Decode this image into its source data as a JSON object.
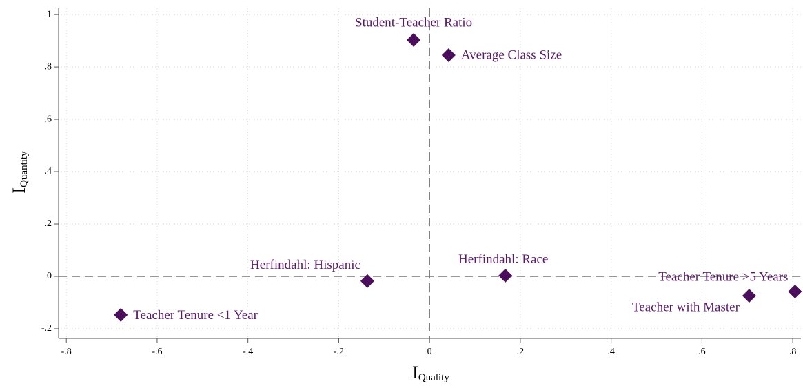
{
  "chart_data": {
    "type": "scatter",
    "xlabel": "I",
    "xlabel_sub": "Quality",
    "ylabel": "I",
    "ylabel_sub": "Quantity",
    "xlim": [
      -0.817,
      0.818
    ],
    "ylim": [
      -0.237,
      1.024
    ],
    "xticks": [
      {
        "value": -0.8,
        "label": "-.8"
      },
      {
        "value": -0.6,
        "label": "-.6"
      },
      {
        "value": -0.4,
        "label": "-.4"
      },
      {
        "value": -0.2,
        "label": "-.2"
      },
      0,
      {
        "value": 0.2,
        "label": ".2"
      },
      {
        "value": 0.4,
        "label": ".4"
      },
      {
        "value": 0.6,
        "label": ".6"
      },
      {
        "value": 0.8,
        "label": ".8"
      }
    ],
    "yticks": [
      {
        "value": -0.2,
        "label": "-.2"
      },
      0,
      {
        "value": 0.2,
        "label": ".2"
      },
      {
        "value": 0.4,
        "label": ".4"
      },
      {
        "value": 0.6,
        "label": ".6"
      },
      {
        "value": 0.8,
        "label": ".8"
      },
      1
    ],
    "grid": true,
    "hline": 0,
    "vline": 0,
    "color": "#4a0e5c",
    "label_color": "#5a1a6a",
    "labels": [
      "Student-Teacher Ratio",
      "Average Class Size",
      "Herfindahl: Hispanic",
      "Herfindahl: Race",
      "Teacher Tenure >5 Years",
      "Teacher with Master",
      "Teacher Tenure <1 Year"
    ],
    "x": [
      -0.035,
      0.042,
      -0.137,
      0.167,
      0.805,
      0.704,
      -0.68
    ],
    "y": [
      0.903,
      0.845,
      -0.018,
      0.003,
      -0.058,
      -0.074,
      -0.147
    ]
  }
}
